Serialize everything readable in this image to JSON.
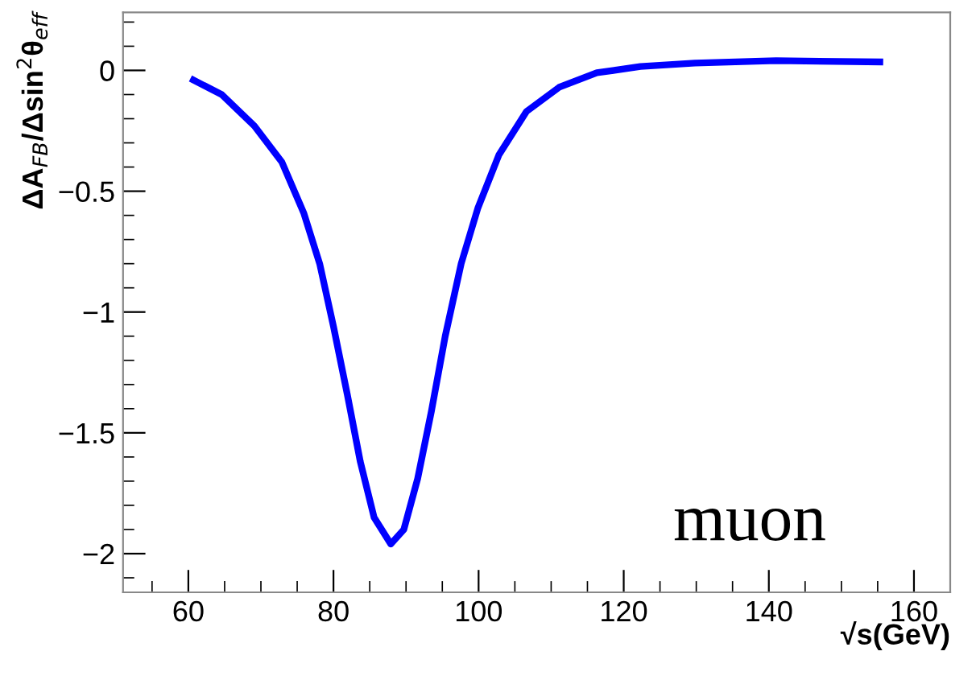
{
  "chart_data": {
    "type": "line",
    "xlabel": "√s(GeV)",
    "ylabel": "ΔA$_{FB}$/Δsin$^{2}$θ$_{eff}$",
    "annotations": [
      "muon"
    ],
    "series": [
      {
        "color": "#0000ff",
        "x": [
          60.7,
          64.6,
          69.1,
          72.9,
          75.9,
          78.1,
          80.0,
          81.9,
          83.7,
          85.6,
          87.9,
          89.7,
          91.6,
          93.5,
          95.4,
          97.6,
          99.9,
          102.8,
          106.6,
          111.1,
          116.3,
          122.3,
          129.8,
          141.0,
          155.3
        ],
        "values": [
          -0.04,
          -0.1,
          -0.23,
          -0.38,
          -0.59,
          -0.8,
          -1.06,
          -1.34,
          -1.62,
          -1.85,
          -1.96,
          -1.9,
          -1.69,
          -1.41,
          -1.1,
          -0.8,
          -0.57,
          -0.35,
          -0.17,
          -0.07,
          -0.01,
          0.016,
          0.03,
          0.04,
          0.035
        ]
      }
    ],
    "xlim": [
      51,
      165
    ],
    "ylim": [
      -2.16,
      0.24
    ],
    "xticks": [
      60,
      80,
      100,
      120,
      140,
      160
    ],
    "yticks": [
      0,
      {
        "value": -0.5,
        "label": "−0.5"
      },
      {
        "value": -1,
        "label": "−1"
      },
      {
        "value": -1.5,
        "label": "−1.5"
      },
      {
        "value": -2,
        "label": "−2"
      }
    ],
    "grid": false,
    "legend": false,
    "marker": "none",
    "line_style": "solid"
  }
}
